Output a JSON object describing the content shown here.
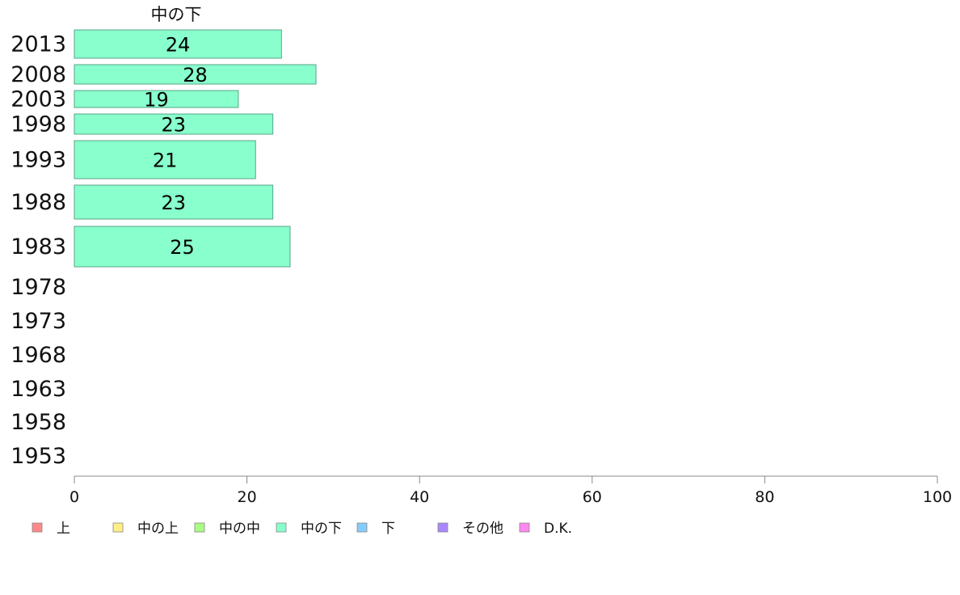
{
  "chart_data": {
    "type": "bar",
    "orientation": "horizontal",
    "title": "中の下",
    "categories": [
      "2013",
      "2008",
      "2003",
      "1998",
      "1993",
      "1988",
      "1983",
      "1978",
      "1973",
      "1968",
      "1963",
      "1958",
      "1953"
    ],
    "series": [
      {
        "name": "中の下",
        "color": "#88ffcc",
        "values": [
          24,
          28,
          19,
          23,
          21,
          23,
          25,
          null,
          null,
          null,
          null,
          null,
          null
        ],
        "data_labels": [
          "24",
          "28",
          "19",
          "23",
          "21",
          "23",
          "25",
          "",
          "",
          "",
          "",
          "",
          ""
        ]
      }
    ],
    "xlim": [
      0,
      100
    ],
    "xticks": [
      "0",
      "20",
      "40",
      "60",
      "80",
      "100"
    ],
    "grid": false,
    "legend_position": "bottom",
    "legend": [
      {
        "label": "上",
        "color": "#ff8888"
      },
      {
        "label": "中の上",
        "color": "#ffee88"
      },
      {
        "label": "中の中",
        "color": "#a8ff80"
      },
      {
        "label": "中の下",
        "color": "#88ffcc"
      },
      {
        "label": "下",
        "color": "#88ccff"
      },
      {
        "label": "その他",
        "color": "#aa88ff"
      },
      {
        "label": "D.K.",
        "color": "#ff88ee"
      }
    ]
  }
}
